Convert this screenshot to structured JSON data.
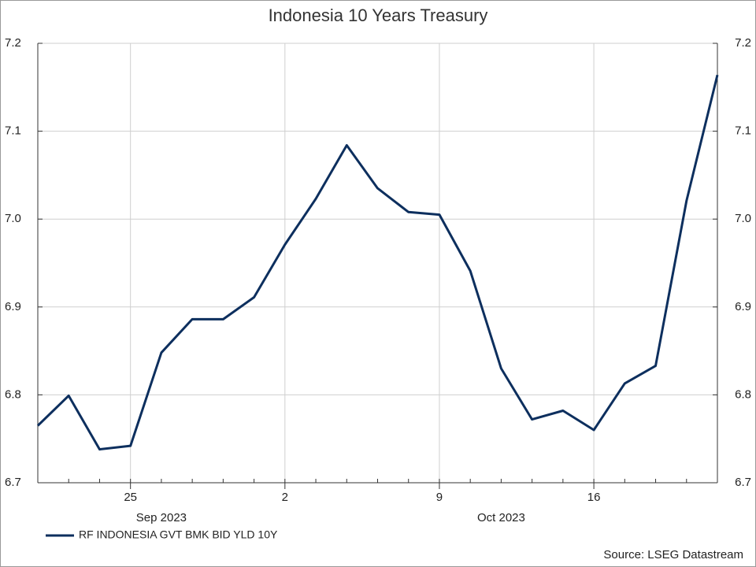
{
  "chart_data": {
    "type": "line",
    "title": "Indonesia 10 Years Treasury",
    "categories": [
      "2023-09-20",
      "2023-09-21",
      "2023-09-22",
      "2023-09-25",
      "2023-09-26",
      "2023-09-27",
      "2023-09-28",
      "2023-09-29",
      "2023-10-02",
      "2023-10-03",
      "2023-10-04",
      "2023-10-05",
      "2023-10-06",
      "2023-10-09",
      "2023-10-10",
      "2023-10-11",
      "2023-10-12",
      "2023-10-13",
      "2023-10-16",
      "2023-10-17",
      "2023-10-18",
      "2023-10-19",
      "2023-10-20"
    ],
    "series": [
      {
        "name": "RF INDONESIA GVT BMK BID YLD 10Y",
        "color": "#0d2f5e",
        "values": [
          6.765,
          6.799,
          6.738,
          6.742,
          6.848,
          6.886,
          6.886,
          6.911,
          6.971,
          7.023,
          7.084,
          7.035,
          7.008,
          7.005,
          6.941,
          6.83,
          6.772,
          6.782,
          6.76,
          6.813,
          6.833,
          7.021,
          7.164
        ]
      }
    ],
    "xticks": [
      {
        "value": "2023-09-25",
        "label": "25"
      },
      {
        "value": "2023-10-02",
        "label": "2"
      },
      {
        "value": "2023-10-09",
        "label": "9"
      },
      {
        "value": "2023-10-16",
        "label": "16"
      }
    ],
    "x_groups": [
      {
        "value": "2023-09-26",
        "label": "Sep 2023"
      },
      {
        "value": "2023-10-11",
        "label": "Oct 2023"
      }
    ],
    "ylim": [
      6.7,
      7.2
    ],
    "yticks": [
      6.7,
      6.8,
      6.9,
      {
        "value": 7.0,
        "label": "7.0"
      },
      7.1,
      7.2
    ],
    "grid": true,
    "source": "Source: LSEG Datastream"
  }
}
